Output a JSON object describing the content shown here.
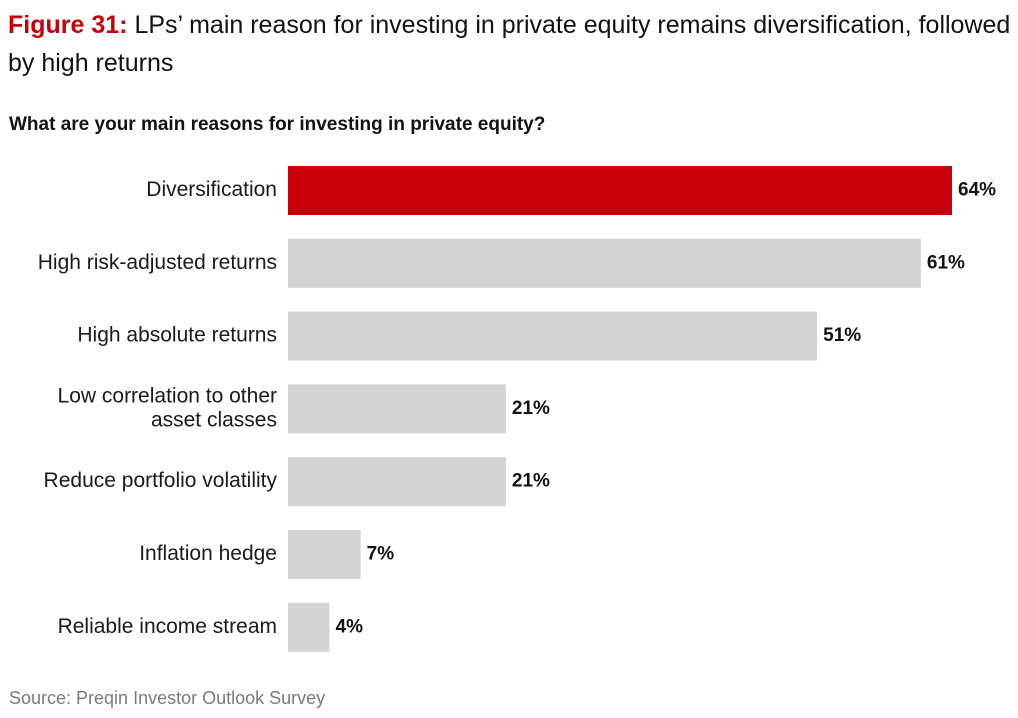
{
  "figure": {
    "label": "Figure 31:",
    "title": "LPs’ main reason for investing in private equity remains diversification, followed by high returns"
  },
  "chart_data": {
    "type": "bar",
    "orientation": "horizontal",
    "title": "What are your main reasons for investing in private equity?",
    "categories": [
      [
        "Diversification"
      ],
      [
        "High risk-adjusted returns"
      ],
      [
        "High absolute returns"
      ],
      [
        "Low correlation to other",
        "asset classes"
      ],
      [
        "Reduce portfolio volatility"
      ],
      [
        "Inflation hedge"
      ],
      [
        "Reliable income stream"
      ]
    ],
    "values": [
      64,
      61,
      51,
      21,
      21,
      7,
      4
    ],
    "value_labels": [
      "64%",
      "61%",
      "51%",
      "21%",
      "21%",
      "7%",
      "4%"
    ],
    "unit": "%",
    "highlight_index": 0,
    "xlim": [
      0,
      64
    ],
    "colors": {
      "highlight": "#c8000a",
      "default": "#d4d4d4"
    }
  },
  "source": "Source: Preqin Investor Outlook Survey",
  "colors": {
    "figure_label": "#c8000a"
  }
}
